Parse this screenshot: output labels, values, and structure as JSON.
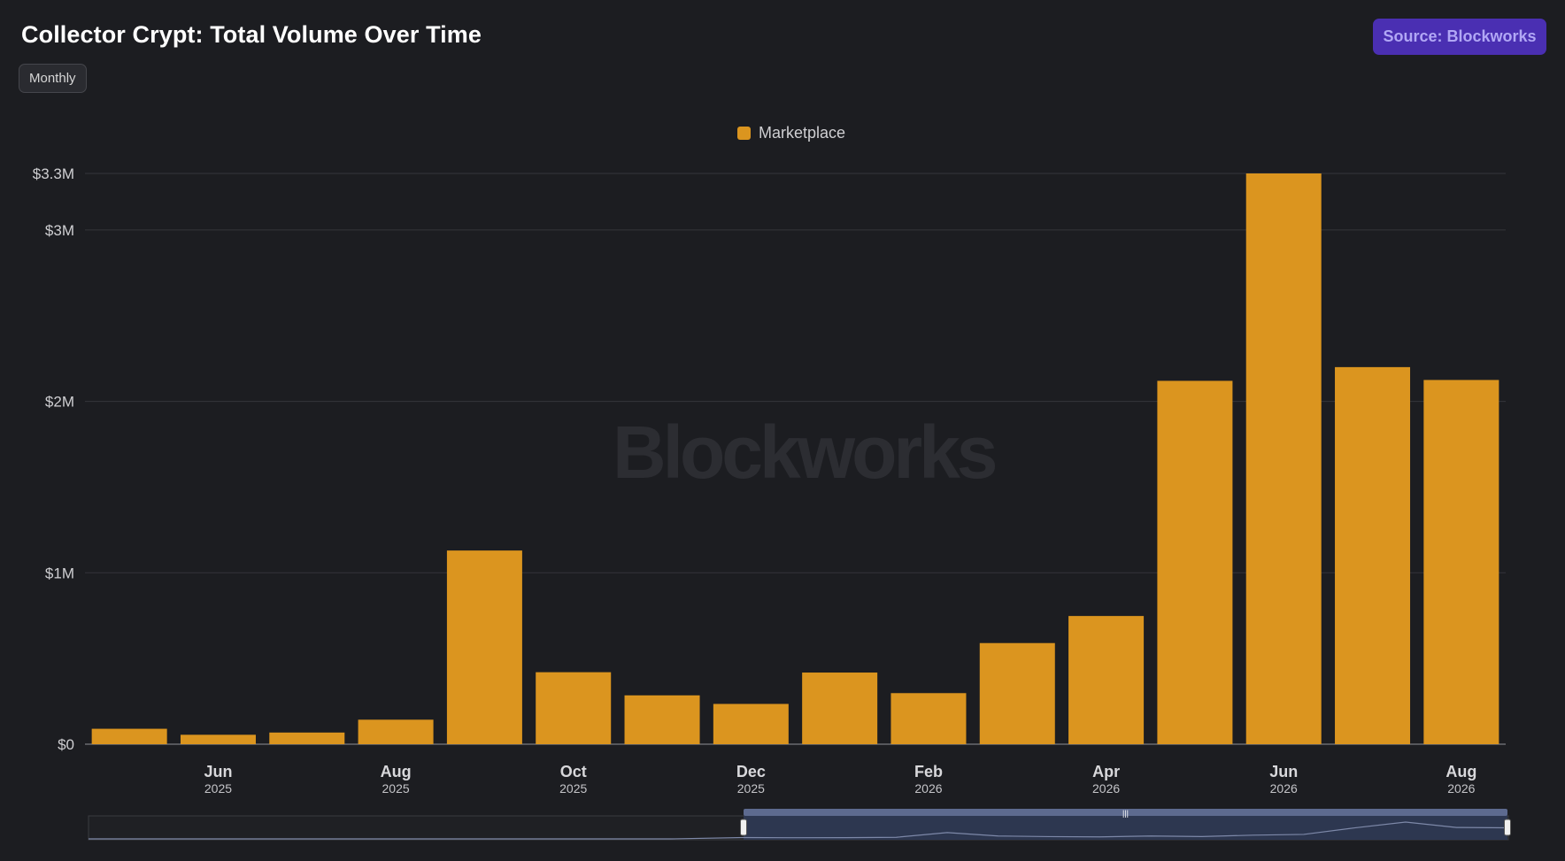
{
  "header": {
    "title": "Collector Crypt: Total Volume Over Time",
    "period_label": "Monthly",
    "source_label": "Source: Blockworks"
  },
  "watermark": "Blockworks",
  "colors": {
    "background": "#1c1d21",
    "bar": "#db951f",
    "source_button": "#4a2fb2",
    "source_text": "#b1a7f5",
    "navigator_selection": "#5d6a8f"
  },
  "chart_data": {
    "type": "bar",
    "title": "Collector Crypt: Total Volume Over Time",
    "categories": [
      "May 2025",
      "Jun 2025",
      "Jul 2025",
      "Aug 2025",
      "Sep 2025",
      "Oct 2025",
      "Nov 2025",
      "Dec 2025",
      "Jan 2026",
      "Feb 2026",
      "Mar 2026",
      "Apr 2026",
      "May 2026",
      "Jun 2026",
      "Jul 2026",
      "Aug 2026"
    ],
    "series": [
      {
        "name": "Marketplace",
        "color": "#db951f",
        "values": [
          90000,
          55000,
          68000,
          143000,
          1130000,
          420000,
          285000,
          235000,
          418000,
          298000,
          590000,
          748000,
          2120000,
          3330000,
          2200000,
          2125000
        ]
      }
    ],
    "ylim": [
      0,
      3330000
    ],
    "yticks": [
      {
        "value": 0,
        "label": "$0"
      },
      {
        "value": 1000000,
        "label": "$1M"
      },
      {
        "value": 2000000,
        "label": "$2M"
      },
      {
        "value": 3000000,
        "label": "$3M"
      },
      {
        "value": 3330000,
        "label": "$3.3M"
      }
    ],
    "xticks": [
      {
        "index": 1,
        "month": "Jun",
        "year": "2025"
      },
      {
        "index": 3,
        "month": "Aug",
        "year": "2025"
      },
      {
        "index": 5,
        "month": "Oct",
        "year": "2025"
      },
      {
        "index": 7,
        "month": "Dec",
        "year": "2025"
      },
      {
        "index": 9,
        "month": "Feb",
        "year": "2026"
      },
      {
        "index": 11,
        "month": "Apr",
        "year": "2026"
      },
      {
        "index": 13,
        "month": "Jun",
        "year": "2026"
      },
      {
        "index": 15,
        "month": "Aug",
        "year": "2026"
      }
    ],
    "legend": "top-center",
    "grid": true
  }
}
